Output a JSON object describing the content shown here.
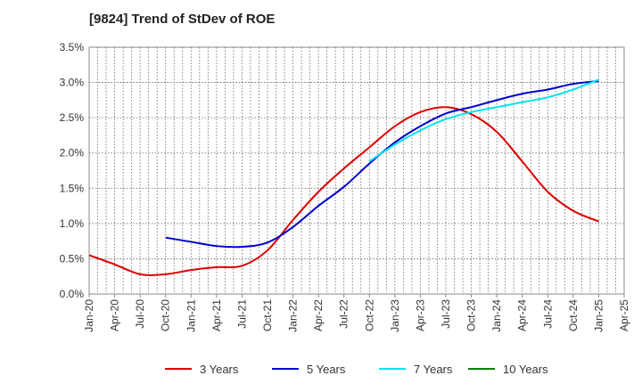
{
  "chart_data": {
    "type": "line",
    "title": "[9824]  Trend of StDev of ROE",
    "xlabel": "",
    "ylabel": "",
    "x_ticks": [
      "Jan-20",
      "Apr-20",
      "Jul-20",
      "Oct-20",
      "Jan-21",
      "Apr-21",
      "Jul-21",
      "Oct-21",
      "Jan-22",
      "Apr-22",
      "Jul-22",
      "Oct-22",
      "Jan-23",
      "Apr-23",
      "Jul-23",
      "Oct-23",
      "Jan-24",
      "Apr-24",
      "Jul-24",
      "Oct-24",
      "Jan-25",
      "Apr-25"
    ],
    "y_ticks": [
      "0.0%",
      "0.5%",
      "1.0%",
      "1.5%",
      "2.0%",
      "2.5%",
      "3.0%",
      "3.5%"
    ],
    "ylim": [
      0,
      3.5
    ],
    "grid": true,
    "legend_position": "bottom",
    "series": [
      {
        "name": "3 Years",
        "color": "#dd0000",
        "points": [
          [
            "Jan-20",
            0.55
          ],
          [
            "Apr-20",
            0.42
          ],
          [
            "Jul-20",
            0.28
          ],
          [
            "Oct-20",
            0.28
          ],
          [
            "Jan-21",
            0.34
          ],
          [
            "Apr-21",
            0.38
          ],
          [
            "Jul-21",
            0.4
          ],
          [
            "Oct-21",
            0.62
          ],
          [
            "Jan-22",
            1.05
          ],
          [
            "Apr-22",
            1.45
          ],
          [
            "Jul-22",
            1.78
          ],
          [
            "Oct-22",
            2.08
          ],
          [
            "Jan-23",
            2.38
          ],
          [
            "Apr-23",
            2.58
          ],
          [
            "Jul-23",
            2.65
          ],
          [
            "Oct-23",
            2.55
          ],
          [
            "Jan-24",
            2.3
          ],
          [
            "Apr-24",
            1.88
          ],
          [
            "Jul-24",
            1.45
          ],
          [
            "Oct-24",
            1.18
          ],
          [
            "Jan-25",
            1.03
          ]
        ]
      },
      {
        "name": "5 Years",
        "color": "#0000cc",
        "points": [
          [
            "Oct-20",
            0.8
          ],
          [
            "Jan-21",
            0.74
          ],
          [
            "Apr-21",
            0.68
          ],
          [
            "Jul-21",
            0.67
          ],
          [
            "Oct-21",
            0.73
          ],
          [
            "Jan-22",
            0.95
          ],
          [
            "Apr-22",
            1.25
          ],
          [
            "Jul-22",
            1.52
          ],
          [
            "Oct-22",
            1.85
          ],
          [
            "Jan-23",
            2.15
          ],
          [
            "Apr-23",
            2.38
          ],
          [
            "Jul-23",
            2.56
          ],
          [
            "Oct-23",
            2.65
          ],
          [
            "Jan-24",
            2.75
          ],
          [
            "Apr-24",
            2.84
          ],
          [
            "Jul-24",
            2.9
          ],
          [
            "Oct-24",
            2.98
          ],
          [
            "Jan-25",
            3.02
          ]
        ]
      },
      {
        "name": "7 Years",
        "color": "#00e5ee",
        "points": [
          [
            "Oct-22",
            1.88
          ],
          [
            "Jan-23",
            2.12
          ],
          [
            "Apr-23",
            2.32
          ],
          [
            "Jul-23",
            2.48
          ],
          [
            "Oct-23",
            2.58
          ],
          [
            "Jan-24",
            2.65
          ],
          [
            "Apr-24",
            2.72
          ],
          [
            "Jul-24",
            2.79
          ],
          [
            "Oct-24",
            2.9
          ],
          [
            "Jan-25",
            3.04
          ]
        ]
      },
      {
        "name": "10 Years",
        "color": "#008000",
        "points": []
      }
    ]
  }
}
